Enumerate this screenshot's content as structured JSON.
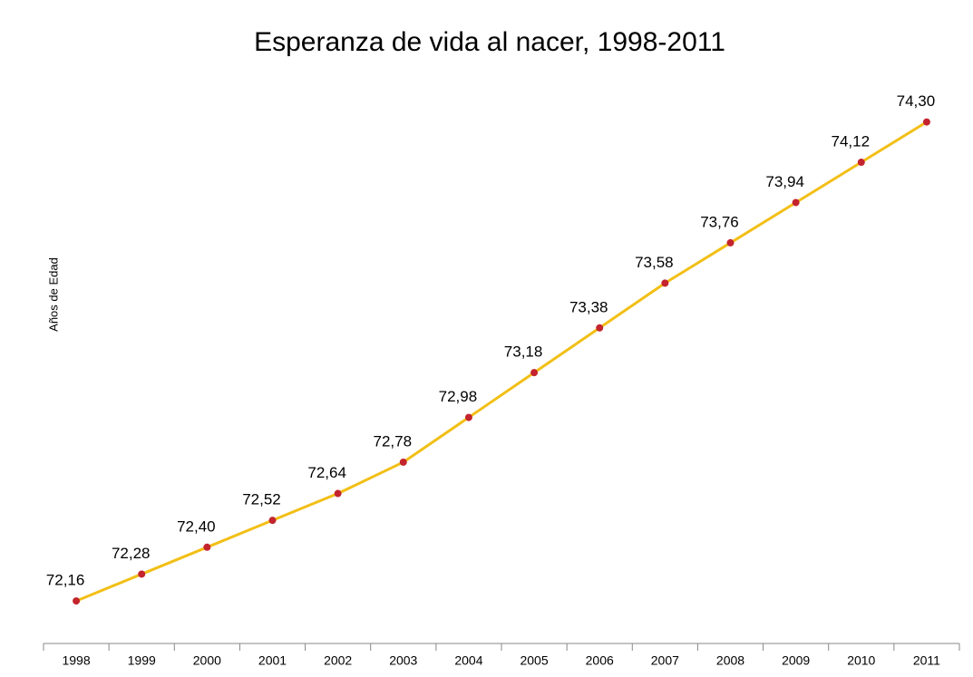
{
  "chart_data": {
    "type": "line",
    "title": "Esperanza de vida al nacer, 1998-2011",
    "y_label": "Años de Edad",
    "categories": [
      "1998",
      "1999",
      "2000",
      "2001",
      "2002",
      "2003",
      "2004",
      "2005",
      "2006",
      "2007",
      "2008",
      "2009",
      "2010",
      "2011"
    ],
    "series": [
      {
        "name": "Esperanza de vida al nacer",
        "color": "#f2bf16",
        "marker_color": "#c3242d",
        "values": [
          72.16,
          72.28,
          72.4,
          72.52,
          72.64,
          72.78,
          72.98,
          73.18,
          73.38,
          73.58,
          73.76,
          73.94,
          74.12,
          74.3
        ],
        "value_labels": [
          "72,16",
          "72,28",
          "72,40",
          "72,52",
          "72,64",
          "72,78",
          "72,98",
          "73,18",
          "73,38",
          "73,58",
          "73,76",
          "73,94",
          "74,12",
          "74,30"
        ]
      }
    ],
    "ylim": [
      71.97,
      74.44
    ]
  }
}
